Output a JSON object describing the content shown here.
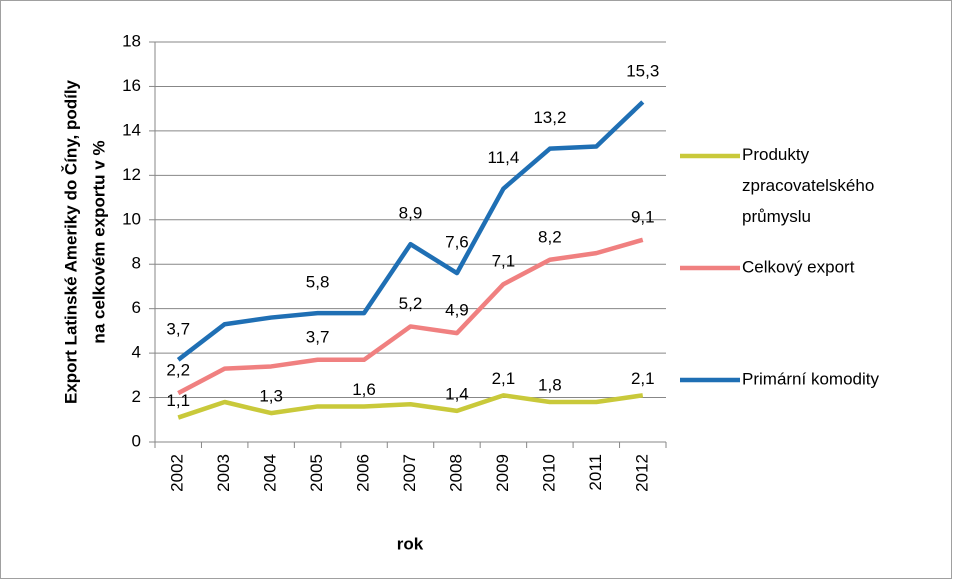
{
  "chart_data": {
    "type": "line",
    "ylabel": [
      "Export Latinské Ameriky do Číny, podíly",
      "na celkovém exportu v %"
    ],
    "xlabel": "rok",
    "categories": [
      "2002",
      "2003",
      "2004",
      "2005",
      "2006",
      "2007",
      "2008",
      "2009",
      "2010",
      "2011",
      "2012"
    ],
    "series": [
      {
        "name": "Produkty zpracovatelského průmyslu",
        "color": "#c9c93a",
        "values": [
          1.1,
          1.8,
          1.3,
          1.6,
          1.6,
          1.7,
          1.4,
          2.1,
          1.8,
          1.8,
          2.1
        ],
        "value_labels": [
          "1,1",
          null,
          "1,3",
          null,
          "1,6",
          null,
          "1,4",
          "2,1",
          "1,8",
          null,
          "2,1"
        ]
      },
      {
        "name": "Celkový export",
        "color": "#f08080",
        "values": [
          2.2,
          3.3,
          3.4,
          3.7,
          3.7,
          5.2,
          4.9,
          7.1,
          8.2,
          8.5,
          9.1
        ],
        "value_labels": [
          "2,2",
          null,
          null,
          "3,7",
          null,
          "5,2",
          "4,9",
          "7,1",
          "8,2",
          null,
          "9,1"
        ]
      },
      {
        "name": "Primární komodity",
        "color": "#1f6fb4",
        "values": [
          3.7,
          5.3,
          5.6,
          5.8,
          5.8,
          8.9,
          7.6,
          11.4,
          13.2,
          13.3,
          15.3
        ],
        "value_labels": [
          "3,7",
          null,
          null,
          "5,8",
          null,
          "8,9",
          "7,6",
          "11,4",
          "13,2",
          null,
          "15,3"
        ]
      }
    ],
    "ylim": [
      0,
      18
    ],
    "yticks": [
      0,
      2,
      4,
      6,
      8,
      10,
      12,
      14,
      16,
      18
    ],
    "grid": true
  }
}
